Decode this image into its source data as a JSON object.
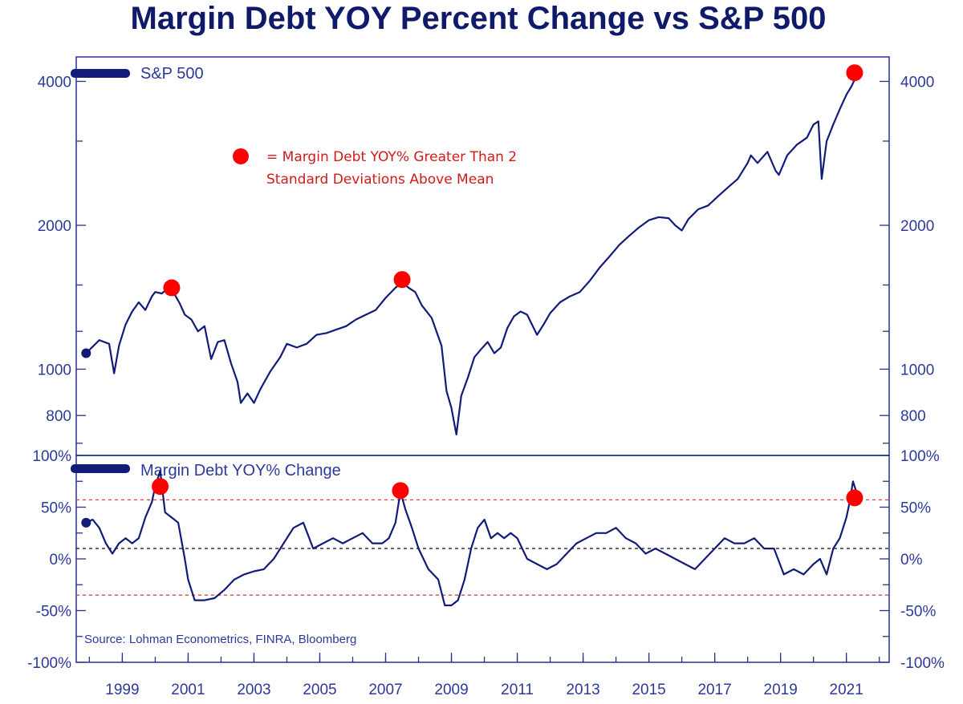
{
  "chart_data": {
    "title": "Margin Debt YOY Percent Change vs S&P 500",
    "source": "Source: Lohman Econometrics, FINRA, Bloomberg",
    "annotation": {
      "marker_color": "#ff0000",
      "text_line1": "= Margin Debt YOY% Greater Than 2",
      "text_line2": "Standard Deviations Above Mean"
    },
    "x_axis": {
      "tick_labels": [
        "1999",
        "2001",
        "2003",
        "2005",
        "2007",
        "2009",
        "2011",
        "2013",
        "2015",
        "2017",
        "2019",
        "2021"
      ],
      "tick_years": [
        1999,
        2001,
        2003,
        2005,
        2007,
        2009,
        2011,
        2013,
        2015,
        2017,
        2019,
        2021
      ],
      "xlim": [
        1997.6,
        2022.3
      ]
    },
    "panels": [
      {
        "type": "line",
        "scale": "log",
        "ylim": [
          660,
          4500
        ],
        "series_name": "S&P 500",
        "series_color": "#111c7a",
        "left_ticks": [
          "4000",
          "2000",
          "1000",
          "800"
        ],
        "right_ticks": [
          "4000",
          "2000",
          "1000",
          "800"
        ],
        "tick_values": [
          4000,
          2000,
          1000,
          800
        ],
        "minor_tick_values": [
          3000,
          1500,
          1200,
          700
        ],
        "x": [
          1997.9,
          1998.3,
          1998.6,
          1998.75,
          1998.9,
          1999.1,
          1999.3,
          1999.5,
          1999.7,
          1999.9,
          2000.0,
          2000.2,
          2000.4,
          2000.6,
          2000.75,
          2000.9,
          2001.1,
          2001.3,
          2001.5,
          2001.7,
          2001.9,
          2002.1,
          2002.3,
          2002.5,
          2002.6,
          2002.8,
          2003.0,
          2003.2,
          2003.5,
          2003.8,
          2004.0,
          2004.3,
          2004.6,
          2004.9,
          2005.2,
          2005.5,
          2005.8,
          2006.1,
          2006.4,
          2006.7,
          2007.0,
          2007.3,
          2007.5,
          2007.7,
          2007.9,
          2008.1,
          2008.4,
          2008.7,
          2008.85,
          2009.0,
          2009.15,
          2009.3,
          2009.5,
          2009.7,
          2009.9,
          2010.1,
          2010.3,
          2010.5,
          2010.7,
          2010.9,
          2011.1,
          2011.3,
          2011.6,
          2011.8,
          2012.0,
          2012.3,
          2012.6,
          2012.9,
          2013.2,
          2013.5,
          2013.8,
          2014.1,
          2014.4,
          2014.7,
          2015.0,
          2015.3,
          2015.6,
          2015.8,
          2016.0,
          2016.2,
          2016.5,
          2016.8,
          2017.1,
          2017.4,
          2017.7,
          2018.0,
          2018.1,
          2018.3,
          2018.6,
          2018.85,
          2018.95,
          2019.2,
          2019.5,
          2019.8,
          2020.0,
          2020.15,
          2020.25,
          2020.4,
          2020.6,
          2020.8,
          2021.0,
          2021.15,
          2021.3
        ],
        "y": [
          1080,
          1150,
          1130,
          980,
          1120,
          1240,
          1320,
          1380,
          1330,
          1420,
          1450,
          1440,
          1480,
          1430,
          1370,
          1300,
          1270,
          1200,
          1230,
          1050,
          1140,
          1150,
          1030,
          940,
          850,
          890,
          850,
          910,
          990,
          1060,
          1130,
          1110,
          1130,
          1180,
          1190,
          1210,
          1230,
          1270,
          1300,
          1330,
          1410,
          1480,
          1520,
          1480,
          1450,
          1360,
          1280,
          1120,
          900,
          830,
          730,
          880,
          960,
          1060,
          1100,
          1140,
          1080,
          1110,
          1220,
          1290,
          1320,
          1300,
          1180,
          1240,
          1310,
          1380,
          1420,
          1450,
          1530,
          1630,
          1720,
          1820,
          1900,
          1980,
          2050,
          2080,
          2070,
          2000,
          1950,
          2060,
          2160,
          2200,
          2300,
          2400,
          2500,
          2700,
          2800,
          2700,
          2850,
          2600,
          2550,
          2800,
          2950,
          3050,
          3250,
          3300,
          2500,
          3000,
          3250,
          3500,
          3750,
          3900,
          4100
        ],
        "highlight_x": [
          2000.5,
          2007.5,
          2021.25
        ],
        "highlight_y": [
          1480,
          1540,
          4170
        ]
      },
      {
        "type": "line",
        "scale": "linear",
        "ylim": [
          -100,
          100
        ],
        "series_name": "Margin Debt YOY% Change",
        "series_color": "#111c7a",
        "left_ticks": [
          "100%",
          "50%",
          "0%",
          "-50%",
          "-100%"
        ],
        "right_ticks": [
          "100%",
          "50%",
          "0%",
          "-50%",
          "-100%"
        ],
        "tick_values": [
          100,
          50,
          0,
          -50,
          -100
        ],
        "minor_tick_values": [
          75,
          25,
          -25,
          -75
        ],
        "reference_lines": [
          {
            "value": 57,
            "color": "#e04545"
          },
          {
            "value": 10,
            "color": "#222222"
          },
          {
            "value": -35,
            "color": "#e04545"
          }
        ],
        "x": [
          1997.9,
          1998.1,
          1998.3,
          1998.5,
          1998.7,
          1998.9,
          1999.1,
          1999.3,
          1999.5,
          1999.7,
          1999.9,
          2000.0,
          2000.15,
          2000.3,
          2000.5,
          2000.7,
          2000.9,
          2001.0,
          2001.2,
          2001.5,
          2001.8,
          2002.1,
          2002.4,
          2002.7,
          2003.0,
          2003.3,
          2003.6,
          2003.9,
          2004.2,
          2004.5,
          2004.8,
          2005.1,
          2005.4,
          2005.7,
          2006.0,
          2006.3,
          2006.6,
          2006.9,
          2007.1,
          2007.3,
          2007.45,
          2007.6,
          2007.8,
          2008.0,
          2008.3,
          2008.6,
          2008.8,
          2009.0,
          2009.2,
          2009.4,
          2009.6,
          2009.8,
          2010.0,
          2010.2,
          2010.4,
          2010.6,
          2010.8,
          2011.0,
          2011.3,
          2011.6,
          2011.9,
          2012.2,
          2012.5,
          2012.8,
          2013.1,
          2013.4,
          2013.7,
          2014.0,
          2014.3,
          2014.6,
          2014.9,
          2015.2,
          2015.5,
          2015.8,
          2016.1,
          2016.4,
          2016.7,
          2017.0,
          2017.3,
          2017.6,
          2017.9,
          2018.2,
          2018.5,
          2018.8,
          2019.1,
          2019.4,
          2019.7,
          2020.0,
          2020.2,
          2020.4,
          2020.6,
          2020.8,
          2021.0,
          2021.1,
          2021.2,
          2021.3
        ],
        "y": [
          35,
          38,
          30,
          15,
          5,
          15,
          20,
          15,
          20,
          40,
          55,
          70,
          85,
          45,
          40,
          35,
          0,
          -20,
          -40,
          -40,
          -38,
          -30,
          -20,
          -15,
          -12,
          -10,
          0,
          15,
          30,
          35,
          10,
          15,
          20,
          15,
          20,
          25,
          15,
          15,
          20,
          35,
          65,
          48,
          30,
          10,
          -10,
          -20,
          -45,
          -45,
          -40,
          -20,
          10,
          30,
          38,
          20,
          25,
          20,
          25,
          20,
          0,
          -5,
          -10,
          -5,
          5,
          15,
          20,
          25,
          25,
          30,
          20,
          15,
          5,
          10,
          5,
          0,
          -5,
          -10,
          0,
          10,
          20,
          15,
          15,
          20,
          10,
          10,
          -15,
          -10,
          -15,
          -5,
          0,
          -15,
          10,
          20,
          40,
          55,
          75,
          65
        ],
        "highlight_x": [
          2000.15,
          2007.45,
          2021.25
        ],
        "highlight_y": [
          70,
          66,
          59
        ]
      }
    ]
  }
}
